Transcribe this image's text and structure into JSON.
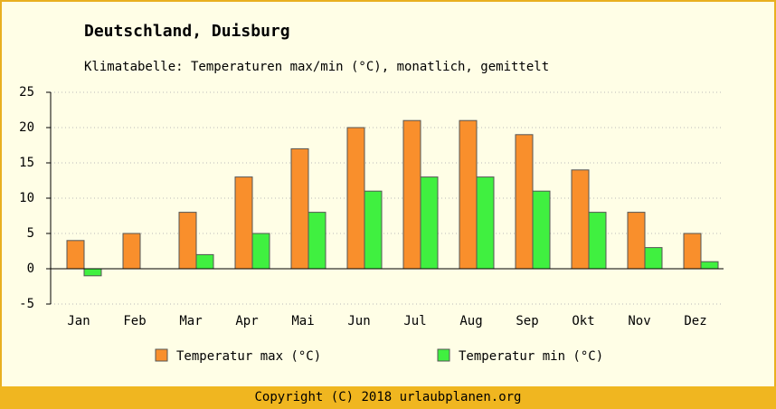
{
  "chart_data": {
    "type": "bar",
    "title": "Deutschland, Duisburg",
    "subtitle": "Klimatabelle: Temperaturen max/min (°C), monatlich, gemittelt",
    "categories": [
      "Jan",
      "Feb",
      "Mar",
      "Apr",
      "Mai",
      "Jun",
      "Jul",
      "Aug",
      "Sep",
      "Okt",
      "Nov",
      "Dez"
    ],
    "series": [
      {
        "name": "Temperatur max (°C)",
        "color": "#f98f2c",
        "values": [
          4,
          5,
          8,
          13,
          17,
          20,
          21,
          21,
          19,
          14,
          8,
          5
        ]
      },
      {
        "name": "Temperatur min (°C)",
        "color": "#40f040",
        "values": [
          -1,
          0,
          2,
          5,
          8,
          11,
          13,
          13,
          11,
          8,
          3,
          1
        ]
      }
    ],
    "ylim": [
      -5,
      25
    ],
    "yticks": [
      -5,
      0,
      5,
      10,
      15,
      20,
      25
    ],
    "grid": true
  },
  "footer": "Copyright (C) 2018 urlaubplanen.org"
}
